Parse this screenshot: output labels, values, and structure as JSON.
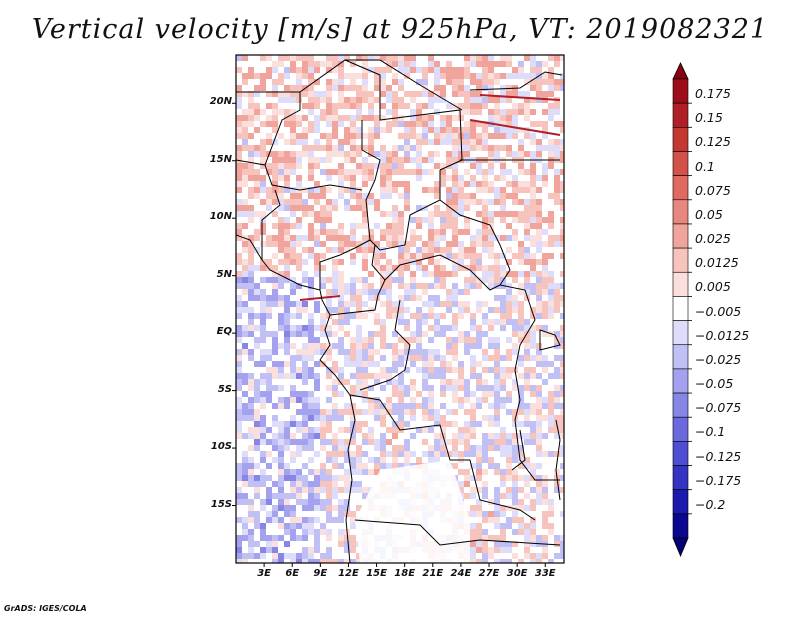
{
  "title": "Vertical velocity [m/s] at 925hPa, VT: 2019082321",
  "credit": "GrADS: IGES/COLA",
  "chart_data": {
    "type": "heatmap",
    "variable": "Vertical velocity",
    "units": "m/s",
    "level": "925hPa",
    "valid_time": "2019082321",
    "lat_range": [
      -20,
      25
    ],
    "lon_range": [
      0,
      35
    ],
    "y_ticks": [
      {
        "label": "20N",
        "lat": 20
      },
      {
        "label": "15N",
        "lat": 15
      },
      {
        "label": "10N",
        "lat": 10
      },
      {
        "label": "5N",
        "lat": 5
      },
      {
        "label": "EQ",
        "lat": 0
      },
      {
        "label": "5S",
        "lat": -5
      },
      {
        "label": "10S",
        "lat": -10
      },
      {
        "label": "15S",
        "lat": -15
      }
    ],
    "x_ticks": [
      {
        "label": "3E",
        "lon": 3
      },
      {
        "label": "6E",
        "lon": 6
      },
      {
        "label": "9E",
        "lon": 9
      },
      {
        "label": "12E",
        "lon": 12
      },
      {
        "label": "15E",
        "lon": 15
      },
      {
        "label": "18E",
        "lon": 18
      },
      {
        "label": "21E",
        "lon": 21
      },
      {
        "label": "24E",
        "lon": 24
      },
      {
        "label": "27E",
        "lon": 27
      },
      {
        "label": "30E",
        "lon": 30
      },
      {
        "label": "33E",
        "lon": 33
      }
    ],
    "colorbar": {
      "labels": [
        "0.175",
        "0.15",
        "0.125",
        "0.1",
        "0.075",
        "0.05",
        "0.025",
        "0.0125",
        "0.005",
        "−0.005",
        "−0.0125",
        "−0.025",
        "−0.05",
        "−0.075",
        "−0.1",
        "−0.125",
        "−0.175",
        "−0.2"
      ],
      "colors": [
        "#9e0e1a",
        "#b01f25",
        "#c43832",
        "#d4504a",
        "#e06a62",
        "#e8877f",
        "#f0a49c",
        "#f6c3bd",
        "#fbdfdc",
        "#ffffff",
        "#dddcfb",
        "#c1c0f5",
        "#a4a2ee",
        "#8785e6",
        "#6b69dd",
        "#4f4ed2",
        "#3433c2",
        "#1c1aae",
        "#0a0890"
      ],
      "max_color": "#8a0010",
      "min_color": "#060078"
    }
  }
}
